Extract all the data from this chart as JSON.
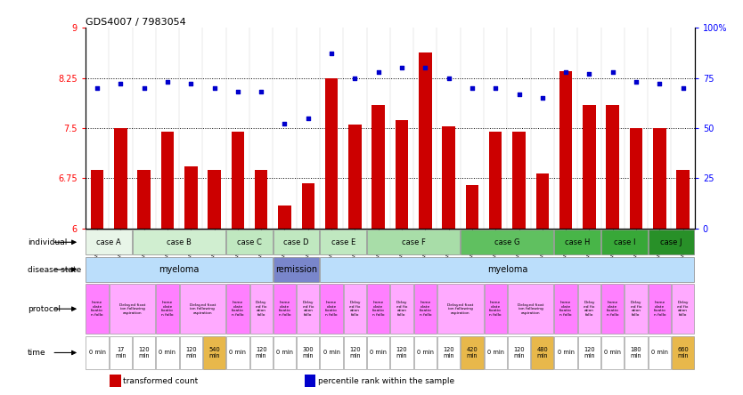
{
  "title": "GDS4007 / 7983054",
  "samples": [
    "GSM879509",
    "GSM879510",
    "GSM879511",
    "GSM879512",
    "GSM879513",
    "GSM879514",
    "GSM879517",
    "GSM879518",
    "GSM879519",
    "GSM879520",
    "GSM879525",
    "GSM879526",
    "GSM879527",
    "GSM879528",
    "GSM879529",
    "GSM879530",
    "GSM879531",
    "GSM879532",
    "GSM879533",
    "GSM879534",
    "GSM879535",
    "GSM879536",
    "GSM879537",
    "GSM879538",
    "GSM879539",
    "GSM879540"
  ],
  "bar_values": [
    6.88,
    7.5,
    6.87,
    7.45,
    6.93,
    6.88,
    7.45,
    6.88,
    6.35,
    6.68,
    8.25,
    7.55,
    7.85,
    7.62,
    8.63,
    7.52,
    6.65,
    7.45,
    7.45,
    6.82,
    8.35,
    7.85,
    7.85,
    7.5,
    7.5,
    6.88
  ],
  "dot_values": [
    70,
    72,
    70,
    73,
    72,
    70,
    68,
    68,
    52,
    55,
    87,
    75,
    78,
    80,
    80,
    75,
    70,
    70,
    67,
    65,
    78,
    77,
    78,
    73,
    72,
    70
  ],
  "bar_color": "#CC0000",
  "dot_color": "#0000CC",
  "ylim_left": [
    6,
    9
  ],
  "ylim_right": [
    0,
    100
  ],
  "yticks_left": [
    6,
    6.75,
    7.5,
    8.25,
    9
  ],
  "yticks_left_labels": [
    "6",
    "6.75",
    "7.5",
    "8.25",
    "9"
  ],
  "yticks_right": [
    0,
    25,
    50,
    75,
    100
  ],
  "yticks_right_labels": [
    "0",
    "25",
    "50",
    "75",
    "100%"
  ],
  "hlines": [
    6.75,
    7.5,
    8.25
  ],
  "case_spans": [
    {
      "name": "case A",
      "s": 0,
      "e": 1,
      "color": "#e8f5e8"
    },
    {
      "name": "case B",
      "s": 2,
      "e": 5,
      "color": "#d0eed0"
    },
    {
      "name": "case C",
      "s": 6,
      "e": 7,
      "color": "#c0e8c0"
    },
    {
      "name": "case D",
      "s": 8,
      "e": 9,
      "color": "#c0e8c0"
    },
    {
      "name": "case E",
      "s": 10,
      "e": 11,
      "color": "#c0e8c0"
    },
    {
      "name": "case F",
      "s": 12,
      "e": 15,
      "color": "#a8dda8"
    },
    {
      "name": "case G",
      "s": 16,
      "e": 19,
      "color": "#60c060"
    },
    {
      "name": "case H",
      "s": 20,
      "e": 21,
      "color": "#48b548"
    },
    {
      "name": "case I",
      "s": 22,
      "e": 23,
      "color": "#38a838"
    },
    {
      "name": "case J",
      "s": 24,
      "e": 25,
      "color": "#289028"
    }
  ],
  "disease_spans": [
    {
      "name": "myeloma",
      "s": 0,
      "e": 7,
      "color": "#bbdefb"
    },
    {
      "name": "remission",
      "s": 8,
      "e": 9,
      "color": "#7986cb"
    },
    {
      "name": "myeloma",
      "s": 10,
      "e": 25,
      "color": "#bbdefb"
    }
  ],
  "protocol_spans": [
    {
      "label": "Imme\ndiate\nfixatio\nn follo",
      "s": 0,
      "e": 0,
      "color": "#ff80ff"
    },
    {
      "label": "Delayed fixat\nion following\naspiration",
      "s": 1,
      "e": 2,
      "color": "#ffaaff"
    },
    {
      "label": "Imme\ndiate\nfixatio\nn follo",
      "s": 3,
      "e": 3,
      "color": "#ff80ff"
    },
    {
      "label": "Delayed fixat\nion following\naspiration",
      "s": 4,
      "e": 5,
      "color": "#ffaaff"
    },
    {
      "label": "Imme\ndiate\nfixatio\nn follo",
      "s": 6,
      "e": 6,
      "color": "#ff80ff"
    },
    {
      "label": "Delay\ned fix\nation\nfollo",
      "s": 7,
      "e": 7,
      "color": "#ffaaff"
    },
    {
      "label": "Imme\ndiate\nfixatio\nn follo",
      "s": 8,
      "e": 8,
      "color": "#ff80ff"
    },
    {
      "label": "Delay\ned fix\nation\nfollo",
      "s": 9,
      "e": 9,
      "color": "#ffaaff"
    },
    {
      "label": "Imme\ndiate\nfixatio\nn follo",
      "s": 10,
      "e": 10,
      "color": "#ff80ff"
    },
    {
      "label": "Delay\ned fix\nation\nfollo",
      "s": 11,
      "e": 11,
      "color": "#ffaaff"
    },
    {
      "label": "Imme\ndiate\nfixatio\nn follo",
      "s": 12,
      "e": 12,
      "color": "#ff80ff"
    },
    {
      "label": "Delay\ned fix\nation\nfollo",
      "s": 13,
      "e": 13,
      "color": "#ffaaff"
    },
    {
      "label": "Imme\ndiate\nfixatio\nn follo",
      "s": 14,
      "e": 14,
      "color": "#ff80ff"
    },
    {
      "label": "Delayed fixat\nion following\naspiration",
      "s": 15,
      "e": 16,
      "color": "#ffaaff"
    },
    {
      "label": "Imme\ndiate\nfixatio\nn follo",
      "s": 17,
      "e": 17,
      "color": "#ff80ff"
    },
    {
      "label": "Delayed fixat\nion following\naspiration",
      "s": 18,
      "e": 19,
      "color": "#ffaaff"
    },
    {
      "label": "Imme\ndiate\nfixatio\nn follo",
      "s": 20,
      "e": 20,
      "color": "#ff80ff"
    },
    {
      "label": "Delay\ned fix\nation\nfollo",
      "s": 21,
      "e": 21,
      "color": "#ffaaff"
    },
    {
      "label": "Imme\ndiate\nfixatio\nn follo",
      "s": 22,
      "e": 22,
      "color": "#ff80ff"
    },
    {
      "label": "Delay\ned fix\nation\nfollo",
      "s": 23,
      "e": 23,
      "color": "#ffaaff"
    },
    {
      "label": "Imme\ndiate\nfixatio\nn follo",
      "s": 24,
      "e": 24,
      "color": "#ff80ff"
    },
    {
      "label": "Delay\ned fix\nation\nfollo",
      "s": 25,
      "e": 25,
      "color": "#ffaaff"
    }
  ],
  "time_data": [
    {
      "label": "0 min",
      "col": 0,
      "color": "#ffffff"
    },
    {
      "label": "17\nmin",
      "col": 1,
      "color": "#ffffff"
    },
    {
      "label": "120\nmin",
      "col": 2,
      "color": "#ffffff"
    },
    {
      "label": "0 min",
      "col": 3,
      "color": "#ffffff"
    },
    {
      "label": "120\nmin",
      "col": 4,
      "color": "#ffffff"
    },
    {
      "label": "540\nmin",
      "col": 5,
      "color": "#e8b84b"
    },
    {
      "label": "0 min",
      "col": 6,
      "color": "#ffffff"
    },
    {
      "label": "120\nmin",
      "col": 7,
      "color": "#ffffff"
    },
    {
      "label": "0 min",
      "col": 8,
      "color": "#ffffff"
    },
    {
      "label": "300\nmin",
      "col": 9,
      "color": "#ffffff"
    },
    {
      "label": "0 min",
      "col": 10,
      "color": "#ffffff"
    },
    {
      "label": "120\nmin",
      "col": 11,
      "color": "#ffffff"
    },
    {
      "label": "0 min",
      "col": 12,
      "color": "#ffffff"
    },
    {
      "label": "120\nmin",
      "col": 13,
      "color": "#ffffff"
    },
    {
      "label": "0 min",
      "col": 14,
      "color": "#ffffff"
    },
    {
      "label": "120\nmin",
      "col": 15,
      "color": "#ffffff"
    },
    {
      "label": "420\nmin",
      "col": 16,
      "color": "#e8b84b"
    },
    {
      "label": "0 min",
      "col": 17,
      "color": "#ffffff"
    },
    {
      "label": "120\nmin",
      "col": 18,
      "color": "#ffffff"
    },
    {
      "label": "480\nmin",
      "col": 19,
      "color": "#e8b84b"
    },
    {
      "label": "0 min",
      "col": 20,
      "color": "#ffffff"
    },
    {
      "label": "120\nmin",
      "col": 21,
      "color": "#ffffff"
    },
    {
      "label": "0 min",
      "col": 22,
      "color": "#ffffff"
    },
    {
      "label": "180\nmin",
      "col": 23,
      "color": "#ffffff"
    },
    {
      "label": "0 min",
      "col": 24,
      "color": "#ffffff"
    },
    {
      "label": "660\nmin",
      "col": 25,
      "color": "#e8b84b"
    }
  ],
  "legend": [
    {
      "label": "transformed count",
      "color": "#CC0000"
    },
    {
      "label": "percentile rank within the sample",
      "color": "#0000CC"
    }
  ],
  "row_labels": [
    "individual",
    "disease state",
    "protocol",
    "time"
  ]
}
